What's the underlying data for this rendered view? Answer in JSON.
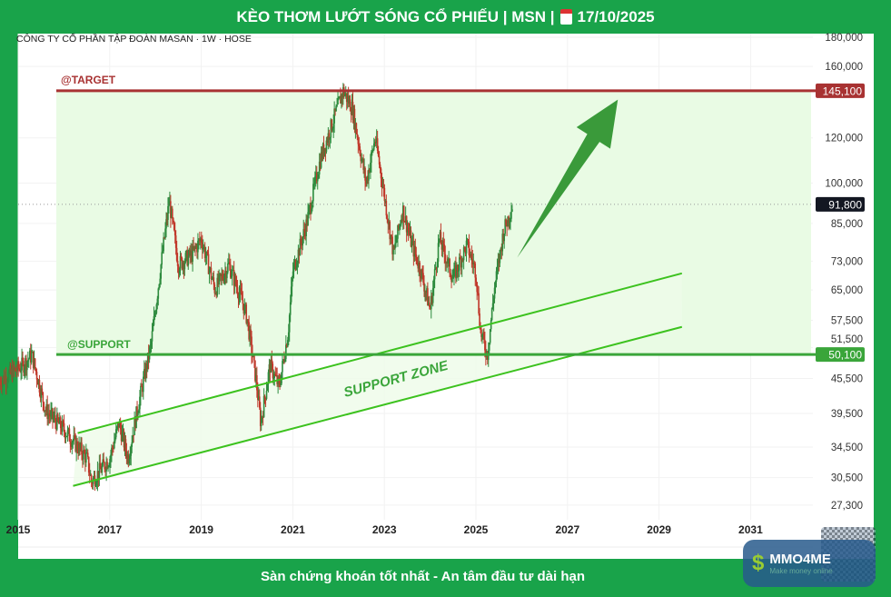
{
  "header": {
    "title": "KÈO THƠM LƯỚT SÓNG CỔ PHIẾU | MSN |",
    "date": "17/10/2025",
    "calendar_icon": "calendar-icon"
  },
  "footer": {
    "tagline": "Sàn chứng khoán tốt nhất - An tâm đầu tư dài hạn"
  },
  "logo": {
    "name": "MMO4ME",
    "slogan": "Make money online"
  },
  "chart_data": {
    "type": "candlestick",
    "title": "CÔNG TY CỔ PHẦN TẬP ĐOÀN MASAN · 1W · HOSE",
    "scale": "log",
    "ylim": [
      26000,
      185000
    ],
    "xlim": [
      2014.6,
      2032
    ],
    "y_ticks": [
      180000,
      160000,
      120000,
      100000,
      85000,
      73000,
      65000,
      57500,
      51500,
      45500,
      39500,
      34500,
      30500,
      27300
    ],
    "y_tick_labels": [
      "180,000",
      "160,000",
      "120,000",
      "100,000",
      "85,000",
      "73,000",
      "65,000",
      "57,500",
      "51,500",
      "45,500",
      "39,500",
      "34,500",
      "30,500",
      "27,300"
    ],
    "x_ticks": [
      2015,
      2017,
      2019,
      2021,
      2023,
      2025,
      2027,
      2029,
      2031
    ],
    "x_tick_labels": [
      "2015",
      "2017",
      "2019",
      "2021",
      "2023",
      "2025",
      "2027",
      "2029",
      "2031"
    ],
    "price_path": [
      [
        2014.6,
        45000
      ],
      [
        2015.1,
        48000
      ],
      [
        2015.3,
        50000
      ],
      [
        2015.6,
        40000
      ],
      [
        2016.0,
        37000
      ],
      [
        2016.5,
        33000
      ],
      [
        2016.6,
        30000
      ],
      [
        2017.0,
        33000
      ],
      [
        2017.2,
        38000
      ],
      [
        2017.4,
        33000
      ],
      [
        2017.6,
        40000
      ],
      [
        2017.9,
        52000
      ],
      [
        2018.1,
        70000
      ],
      [
        2018.3,
        93000
      ],
      [
        2018.5,
        72000
      ],
      [
        2018.8,
        75000
      ],
      [
        2019.0,
        80000
      ],
      [
        2019.3,
        65000
      ],
      [
        2019.6,
        72000
      ],
      [
        2019.9,
        62000
      ],
      [
        2020.0,
        58000
      ],
      [
        2020.2,
        45000
      ],
      [
        2020.3,
        38000
      ],
      [
        2020.5,
        48000
      ],
      [
        2020.7,
        44000
      ],
      [
        2020.9,
        55000
      ],
      [
        2021.0,
        70000
      ],
      [
        2021.3,
        85000
      ],
      [
        2021.6,
        110000
      ],
      [
        2021.9,
        130000
      ],
      [
        2022.1,
        145000
      ],
      [
        2022.3,
        135000
      ],
      [
        2022.6,
        100000
      ],
      [
        2022.8,
        120000
      ],
      [
        2023.0,
        95000
      ],
      [
        2023.2,
        75000
      ],
      [
        2023.4,
        90000
      ],
      [
        2023.6,
        78000
      ],
      [
        2023.8,
        70000
      ],
      [
        2024.0,
        60000
      ],
      [
        2024.2,
        80000
      ],
      [
        2024.5,
        68000
      ],
      [
        2024.8,
        78000
      ],
      [
        2025.0,
        70000
      ],
      [
        2025.1,
        55000
      ],
      [
        2025.25,
        50000
      ],
      [
        2025.4,
        65000
      ],
      [
        2025.6,
        82000
      ],
      [
        2025.8,
        91800
      ]
    ],
    "last_price": {
      "value": 91800,
      "label": "91,800"
    },
    "target": {
      "label": "@TARGET",
      "value": 145100,
      "value_label": "145,100",
      "color": "#a83232"
    },
    "support": {
      "label": "@SUPPORT",
      "value": 50100,
      "value_label": "50,100",
      "color": "#3aa53a"
    },
    "support_zone": {
      "label": "SUPPORT ZONE",
      "upper": [
        [
          2016.3,
          36500
        ],
        [
          2029.5,
          69500
        ]
      ],
      "lower": [
        [
          2016.2,
          29500
        ],
        [
          2029.5,
          56000
        ]
      ]
    },
    "arrow": {
      "from": [
        2025.9,
        74000
      ],
      "to": [
        2028.1,
        140000
      ],
      "color": "#3a9a3a"
    },
    "up_color": "#2e8b3e",
    "down_color": "#c0392b"
  }
}
